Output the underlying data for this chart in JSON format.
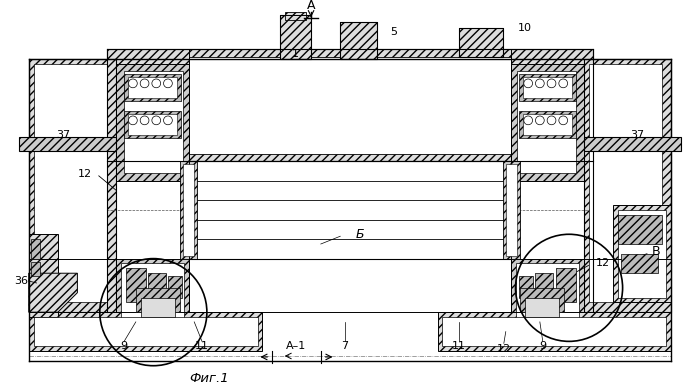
{
  "background_color": "#ffffff",
  "line_color": "#000000",
  "fig_label": "Фиг.1",
  "labels": {
    "A_top": "A",
    "num_1": "1",
    "num_5": "5",
    "num_7": "7",
    "num_9_left": "9",
    "num_9_right": "9",
    "num_10": "10",
    "num_11_left": "11",
    "num_11_right": "11",
    "num_12_left": "12",
    "num_12_right": "12",
    "num_36": "36",
    "num_37_left": "37",
    "num_37_right": "37",
    "B_label": "Б",
    "V_label": "В",
    "A1_label": "А–1"
  }
}
